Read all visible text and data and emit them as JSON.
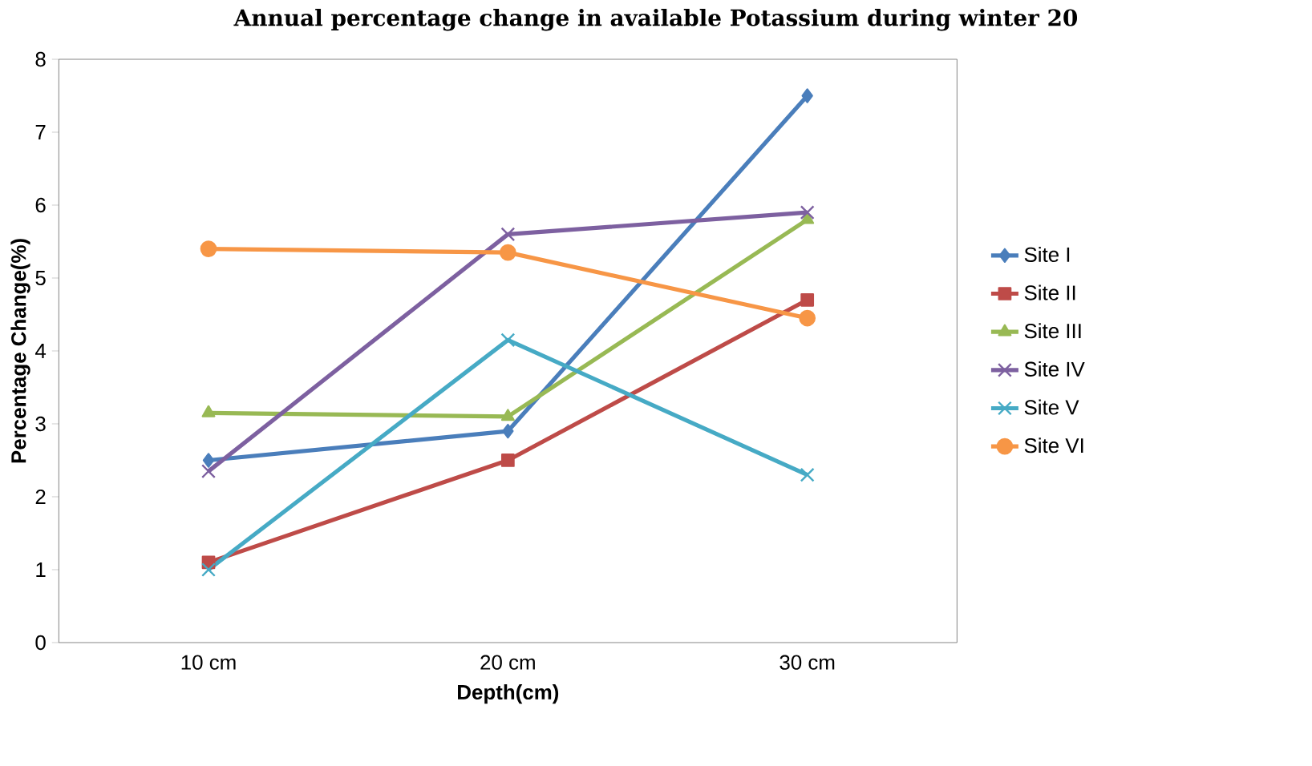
{
  "chart_data": {
    "type": "line",
    "title": "Annual percentage change in available Potassium during winter 20",
    "xlabel": "Depth(cm)",
    "ylabel": "Percentage Change(%)",
    "categories": [
      "10 cm",
      "20 cm",
      "30 cm"
    ],
    "ylim": [
      0,
      8
    ],
    "yticks": [
      0,
      1,
      2,
      3,
      4,
      5,
      6,
      7,
      8
    ],
    "grid": false,
    "legend": "right",
    "series": [
      {
        "name": "Site I",
        "color": "#4a7ebb",
        "marker": "diamond",
        "values": [
          2.5,
          2.9,
          7.5
        ]
      },
      {
        "name": "Site II",
        "color": "#be4b48",
        "marker": "square",
        "values": [
          1.1,
          2.5,
          4.7
        ]
      },
      {
        "name": "Site III",
        "color": "#98b954",
        "marker": "triangle",
        "values": [
          3.15,
          3.1,
          5.8
        ]
      },
      {
        "name": "Site IV",
        "color": "#7d60a0",
        "marker": "cross",
        "values": [
          2.35,
          5.6,
          5.9
        ]
      },
      {
        "name": "Site V",
        "color": "#46aac5",
        "marker": "cross",
        "values": [
          1.0,
          4.15,
          2.3
        ]
      },
      {
        "name": "Site VI",
        "color": "#f79646",
        "marker": "circle",
        "values": [
          5.4,
          5.35,
          4.45
        ]
      }
    ]
  }
}
